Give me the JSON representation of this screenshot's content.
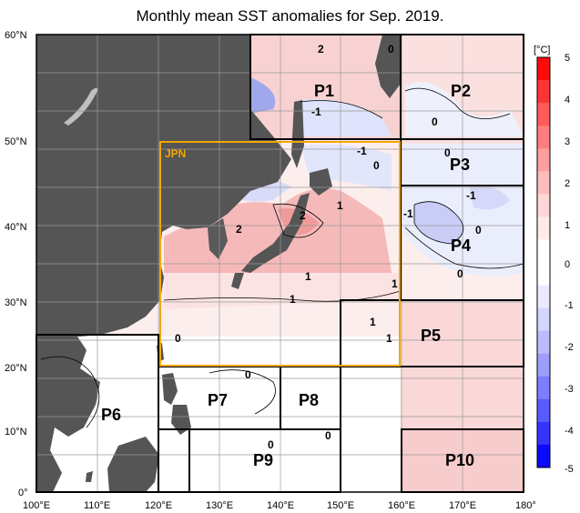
{
  "title": "Monthly mean SST anomalies for Sep. 2019.",
  "colorbar": {
    "unit": "[°C]",
    "labels": [
      "5",
      "4",
      "3",
      "2",
      "1",
      "0",
      "-1",
      "-2",
      "-3",
      "-4",
      "-5"
    ],
    "colors": [
      "#ff0a0a",
      "#ff3535",
      "#ff5a5a",
      "#ff7d7d",
      "#ff9e9e",
      "#ffbcbc",
      "#ffd6d6",
      "#ffeaea",
      "#ffffff",
      "#ffffff",
      "#eaeaff",
      "#d4d4ff",
      "#bbbbff",
      "#9e9eff",
      "#7d7dff",
      "#5a5aff",
      "#3535ff",
      "#0a0aff"
    ]
  },
  "axes": {
    "lat_labels": [
      "60°N",
      "50°N",
      "40°N",
      "30°N",
      "20°N",
      "10°N",
      "0°"
    ],
    "lon_labels": [
      "100°E",
      "110°E",
      "120°E",
      "130°E",
      "140°E",
      "150°E",
      "160°E",
      "170°E",
      "180°"
    ]
  },
  "regions": [
    "P1",
    "P2",
    "P3",
    "P4",
    "P5",
    "P6",
    "P7",
    "P8",
    "P9",
    "P10"
  ],
  "jpn_label": "JPN",
  "contour_labels": {
    "p1_2": "2",
    "p1_0": "0",
    "p1_m1": "-1",
    "p2_0": "0",
    "jpn_m1": "-1",
    "jpn_0": "0",
    "jpn_1a": "1",
    "jpn_2a": "2",
    "jpn_2b": "2",
    "p3_0": "0",
    "p4_m1a": "-1",
    "p4_m1b": "-1",
    "p4_0a": "0",
    "p4_0b": "0",
    "mid_1a": "1",
    "mid_1b": "1",
    "mid_1c": "1",
    "p5_1a": "1",
    "p5_1b": "1",
    "scs_0": "0",
    "p7_0": "0",
    "p9_0a": "0",
    "p9_0b": "0"
  }
}
